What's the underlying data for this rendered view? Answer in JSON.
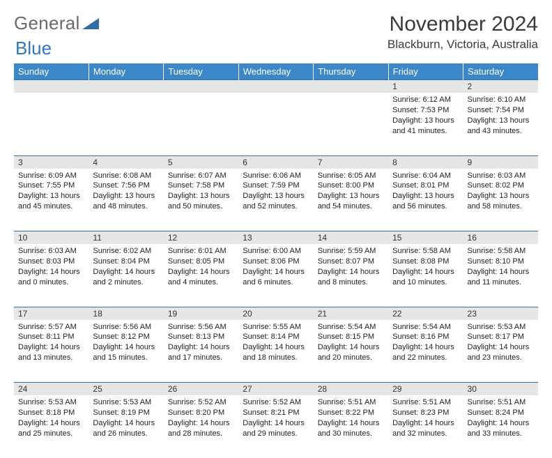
{
  "logo": {
    "word1": "General",
    "word2": "Blue",
    "triangle_color": "#2f6fa6"
  },
  "title": "November 2024",
  "location": "Blackburn, Victoria, Australia",
  "colors": {
    "header_bg": "#3c87c7",
    "header_text": "#ffffff",
    "daynum_bg": "#e6e6e6",
    "border": "#2f6fa6",
    "body_text": "#222222"
  },
  "day_headers": [
    "Sunday",
    "Monday",
    "Tuesday",
    "Wednesday",
    "Thursday",
    "Friday",
    "Saturday"
  ],
  "weeks": [
    [
      null,
      null,
      null,
      null,
      null,
      {
        "n": "1",
        "sr": "6:12 AM",
        "ss": "7:53 PM",
        "dl": "13 hours and 41 minutes."
      },
      {
        "n": "2",
        "sr": "6:10 AM",
        "ss": "7:54 PM",
        "dl": "13 hours and 43 minutes."
      }
    ],
    [
      {
        "n": "3",
        "sr": "6:09 AM",
        "ss": "7:55 PM",
        "dl": "13 hours and 45 minutes."
      },
      {
        "n": "4",
        "sr": "6:08 AM",
        "ss": "7:56 PM",
        "dl": "13 hours and 48 minutes."
      },
      {
        "n": "5",
        "sr": "6:07 AM",
        "ss": "7:58 PM",
        "dl": "13 hours and 50 minutes."
      },
      {
        "n": "6",
        "sr": "6:06 AM",
        "ss": "7:59 PM",
        "dl": "13 hours and 52 minutes."
      },
      {
        "n": "7",
        "sr": "6:05 AM",
        "ss": "8:00 PM",
        "dl": "13 hours and 54 minutes."
      },
      {
        "n": "8",
        "sr": "6:04 AM",
        "ss": "8:01 PM",
        "dl": "13 hours and 56 minutes."
      },
      {
        "n": "9",
        "sr": "6:03 AM",
        "ss": "8:02 PM",
        "dl": "13 hours and 58 minutes."
      }
    ],
    [
      {
        "n": "10",
        "sr": "6:03 AM",
        "ss": "8:03 PM",
        "dl": "14 hours and 0 minutes."
      },
      {
        "n": "11",
        "sr": "6:02 AM",
        "ss": "8:04 PM",
        "dl": "14 hours and 2 minutes."
      },
      {
        "n": "12",
        "sr": "6:01 AM",
        "ss": "8:05 PM",
        "dl": "14 hours and 4 minutes."
      },
      {
        "n": "13",
        "sr": "6:00 AM",
        "ss": "8:06 PM",
        "dl": "14 hours and 6 minutes."
      },
      {
        "n": "14",
        "sr": "5:59 AM",
        "ss": "8:07 PM",
        "dl": "14 hours and 8 minutes."
      },
      {
        "n": "15",
        "sr": "5:58 AM",
        "ss": "8:08 PM",
        "dl": "14 hours and 10 minutes."
      },
      {
        "n": "16",
        "sr": "5:58 AM",
        "ss": "8:10 PM",
        "dl": "14 hours and 11 minutes."
      }
    ],
    [
      {
        "n": "17",
        "sr": "5:57 AM",
        "ss": "8:11 PM",
        "dl": "14 hours and 13 minutes."
      },
      {
        "n": "18",
        "sr": "5:56 AM",
        "ss": "8:12 PM",
        "dl": "14 hours and 15 minutes."
      },
      {
        "n": "19",
        "sr": "5:56 AM",
        "ss": "8:13 PM",
        "dl": "14 hours and 17 minutes."
      },
      {
        "n": "20",
        "sr": "5:55 AM",
        "ss": "8:14 PM",
        "dl": "14 hours and 18 minutes."
      },
      {
        "n": "21",
        "sr": "5:54 AM",
        "ss": "8:15 PM",
        "dl": "14 hours and 20 minutes."
      },
      {
        "n": "22",
        "sr": "5:54 AM",
        "ss": "8:16 PM",
        "dl": "14 hours and 22 minutes."
      },
      {
        "n": "23",
        "sr": "5:53 AM",
        "ss": "8:17 PM",
        "dl": "14 hours and 23 minutes."
      }
    ],
    [
      {
        "n": "24",
        "sr": "5:53 AM",
        "ss": "8:18 PM",
        "dl": "14 hours and 25 minutes."
      },
      {
        "n": "25",
        "sr": "5:53 AM",
        "ss": "8:19 PM",
        "dl": "14 hours and 26 minutes."
      },
      {
        "n": "26",
        "sr": "5:52 AM",
        "ss": "8:20 PM",
        "dl": "14 hours and 28 minutes."
      },
      {
        "n": "27",
        "sr": "5:52 AM",
        "ss": "8:21 PM",
        "dl": "14 hours and 29 minutes."
      },
      {
        "n": "28",
        "sr": "5:51 AM",
        "ss": "8:22 PM",
        "dl": "14 hours and 30 minutes."
      },
      {
        "n": "29",
        "sr": "5:51 AM",
        "ss": "8:23 PM",
        "dl": "14 hours and 32 minutes."
      },
      {
        "n": "30",
        "sr": "5:51 AM",
        "ss": "8:24 PM",
        "dl": "14 hours and 33 minutes."
      }
    ]
  ],
  "labels": {
    "sunrise": "Sunrise:",
    "sunset": "Sunset:",
    "daylight": "Daylight:"
  }
}
